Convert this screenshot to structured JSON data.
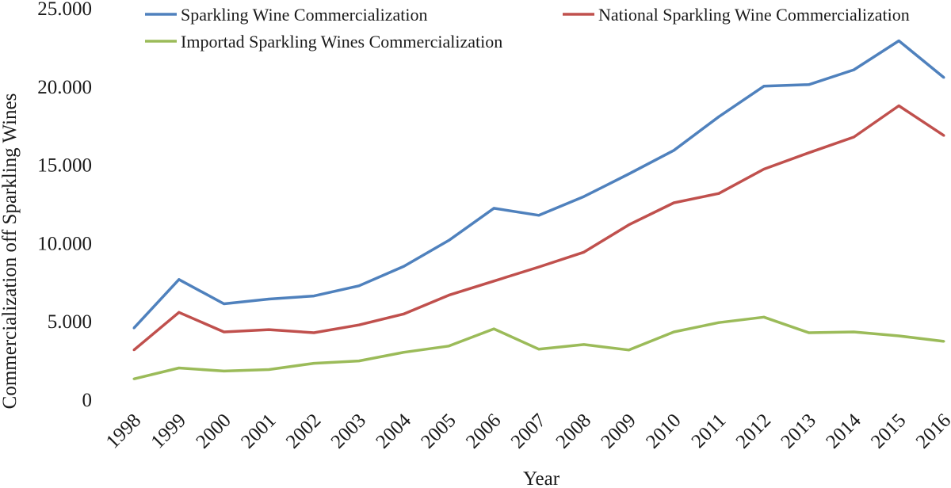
{
  "chart_data": {
    "type": "line",
    "title": "",
    "xlabel": "Year",
    "ylabel": "Commercialization off Sparkling Wines",
    "ylim": [
      0,
      25000
    ],
    "y_ticks": [
      {
        "value": 0,
        "label": "0"
      },
      {
        "value": 5000,
        "label": "5.000"
      },
      {
        "value": 10000,
        "label": "10.000"
      },
      {
        "value": 15000,
        "label": "15.000"
      },
      {
        "value": 20000,
        "label": "20.000"
      },
      {
        "value": 25000,
        "label": "25.000"
      }
    ],
    "categories": [
      "1998",
      "1999",
      "2000",
      "2001",
      "2002",
      "2003",
      "2004",
      "2005",
      "2006",
      "2007",
      "2008",
      "2009",
      "2010",
      "2011",
      "2012",
      "2013",
      "2014",
      "2015",
      "2016"
    ],
    "grid": false,
    "legend_placement": "top",
    "series": [
      {
        "name": "Sparkling Wine Commercialization",
        "color": "#4f81bd",
        "values": [
          4600,
          7700,
          6150,
          6450,
          6650,
          7300,
          8550,
          10200,
          12250,
          11800,
          13000,
          14450,
          15950,
          18100,
          20050,
          20150,
          21100,
          22950,
          20600
        ]
      },
      {
        "name": "National Sparkling Wine Commercialization",
        "color": "#c0504d",
        "values": [
          3200,
          5600,
          4350,
          4500,
          4300,
          4800,
          5500,
          6700,
          7600,
          8500,
          9450,
          11200,
          12600,
          13200,
          14750,
          15800,
          16800,
          18800,
          16900
        ]
      },
      {
        "name": "Importad Sparkling Wines Commercialization",
        "color": "#9bbb59",
        "values": [
          1350,
          2050,
          1850,
          1950,
          2350,
          2500,
          3050,
          3450,
          4550,
          3250,
          3550,
          3200,
          4350,
          4950,
          5300,
          4300,
          4350,
          4100,
          3750
        ]
      }
    ]
  }
}
